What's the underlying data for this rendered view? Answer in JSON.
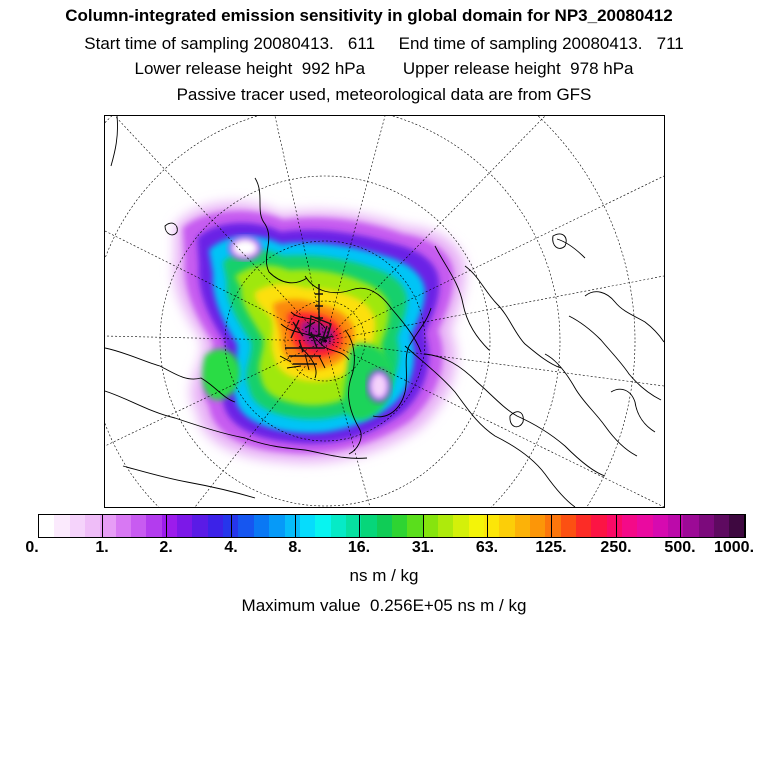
{
  "header": {
    "title": "Column-integrated emission sensitivity in global domain for NP3_20080412",
    "sampling": "Start time of sampling 20080413.   611     End time of sampling 20080413.   711",
    "release": "Lower release height  992 hPa        Upper release height  978 hPa",
    "note": "Passive tracer used, meteorological data are from GFS"
  },
  "colorbar": {
    "colors": [
      "#ffffff",
      "#fbeafd",
      "#f5d3fb",
      "#efbdf8",
      "#e79df6",
      "#d878f3",
      "#c85bf1",
      "#b33cee",
      "#9c1cec",
      "#7c18e8",
      "#5a1be6",
      "#3c22e8",
      "#2636ec",
      "#1656f0",
      "#0a78f4",
      "#069af8",
      "#06bcfa",
      "#06dcfc",
      "#08f4f0",
      "#06eac6",
      "#06e0a0",
      "#06d67a",
      "#10cc56",
      "#2ed432",
      "#5ade1c",
      "#86e40e",
      "#aeea0c",
      "#d4f00a",
      "#f4f408",
      "#fce608",
      "#fcce08",
      "#fcb208",
      "#fc9608",
      "#fc760c",
      "#fc5012",
      "#fc2c26",
      "#fc1444",
      "#fa0a66",
      "#f40a88",
      "#ea0aa0",
      "#d60ab0",
      "#bc0aaa",
      "#9c0a96",
      "#7c0a7c",
      "#5e0a60",
      "#3e0840"
    ],
    "labels": [
      "0.",
      "1.",
      "2.",
      "4.",
      "8.",
      "16.",
      "31.",
      "63.",
      "125.",
      "250.",
      "500.",
      "1000."
    ],
    "units": "ns m / kg"
  },
  "footer": {
    "max_value": "Maximum value  0.256E+05 ns m / kg"
  }
}
